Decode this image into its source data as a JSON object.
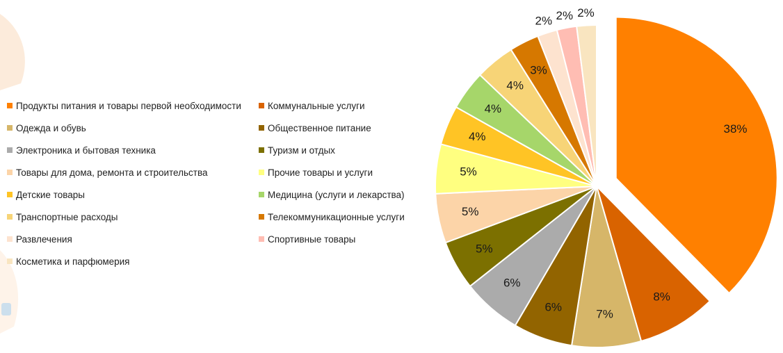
{
  "chart_data": {
    "type": "pie",
    "title": "",
    "legend_position": "left",
    "start_angle_deg": 0,
    "exploded_slice_index": 0,
    "slices": [
      {
        "name": "Продукты питания и товары первой необходимости",
        "value": 38,
        "label": "38%",
        "color": "#FF8000"
      },
      {
        "name": "Коммунальные услуги",
        "value": 8,
        "label": "8%",
        "color": "#D96300"
      },
      {
        "name": "Одежда и обувь",
        "value": 7,
        "label": "7%",
        "color": "#D6B669"
      },
      {
        "name": "Общественное питание",
        "value": 6,
        "label": "6%",
        "color": "#926400"
      },
      {
        "name": "Электроника и бытовая техника",
        "value": 6,
        "label": "6%",
        "color": "#ABABAB"
      },
      {
        "name": "Туризм и отдых",
        "value": 5,
        "label": "5%",
        "color": "#7C7000"
      },
      {
        "name": "Товары для дома, ремонта и строительства",
        "value": 5,
        "label": "5%",
        "color": "#FCD4A8"
      },
      {
        "name": "Прочие товары и услуги",
        "value": 5,
        "label": "5%",
        "color": "#FFFF80"
      },
      {
        "name": "Детские товары",
        "value": 4,
        "label": "4%",
        "color": "#FFC425"
      },
      {
        "name": "Медицина (услуги и лекарства)",
        "value": 4,
        "label": "4%",
        "color": "#A6D66A"
      },
      {
        "name": "Транспортные расходы",
        "value": 4,
        "label": "4%",
        "color": "#F7D477"
      },
      {
        "name": "Телекоммуникационные услуги",
        "value": 3,
        "label": "3%",
        "color": "#D67800"
      },
      {
        "name": "Развлечения",
        "value": 2,
        "label": "2%",
        "color": "#FDE3CF"
      },
      {
        "name": "Спортивные товары",
        "value": 2,
        "label": "2%",
        "color": "#FFBDB3"
      },
      {
        "name": "Косметика и парфюмерия",
        "value": 2,
        "label": "2%",
        "color": "#F9E5C0"
      }
    ]
  }
}
